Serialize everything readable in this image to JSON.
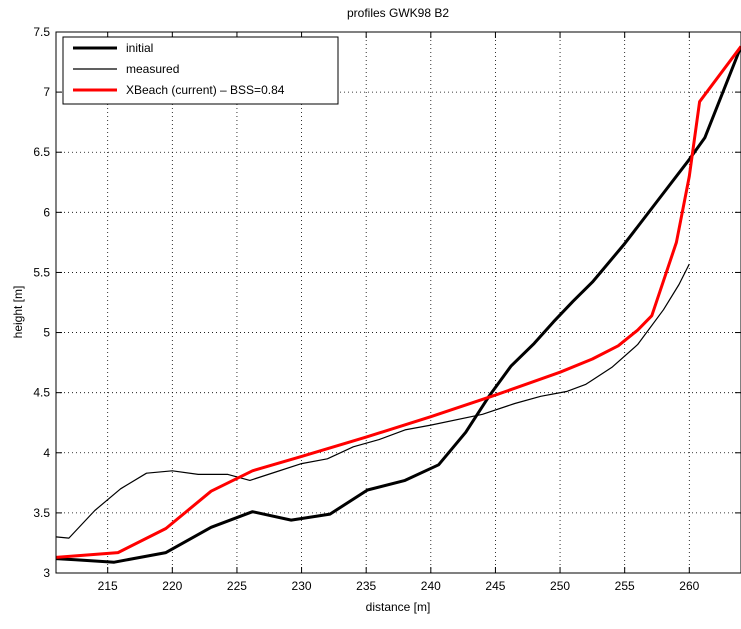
{
  "chart_data": {
    "type": "line",
    "title": "profiles GWK98 B2",
    "xlabel": "distance [m]",
    "ylabel": "height [m]",
    "xlim": [
      211,
      264
    ],
    "ylim": [
      3,
      7.5
    ],
    "x_ticks": [
      215,
      220,
      225,
      230,
      235,
      240,
      245,
      250,
      255,
      260
    ],
    "y_ticks": [
      3,
      3.5,
      4,
      4.5,
      5,
      5.5,
      6,
      6.5,
      7,
      7.5
    ],
    "x_tick_labels": [
      "215",
      "220",
      "225",
      "230",
      "235",
      "240",
      "245",
      "250",
      "255",
      "260"
    ],
    "y_tick_labels": [
      "3",
      "3.5",
      "4",
      "4.5",
      "5",
      "5.5",
      "6",
      "6.5",
      "7",
      "7.5"
    ],
    "grid": true,
    "grid_style": "dotted",
    "legend_position": "top-left",
    "series": [
      {
        "name": "initial",
        "color": "#000000",
        "line_width": "thick",
        "points": [
          [
            211,
            3.12
          ],
          [
            212.5,
            3.11
          ],
          [
            215.5,
            3.09
          ],
          [
            219.5,
            3.17
          ],
          [
            223,
            3.38
          ],
          [
            226.2,
            3.51
          ],
          [
            229.2,
            3.44
          ],
          [
            232.2,
            3.49
          ],
          [
            235.1,
            3.69
          ],
          [
            238,
            3.77
          ],
          [
            240.6,
            3.9
          ],
          [
            242.7,
            4.17
          ],
          [
            244.5,
            4.47
          ],
          [
            246.2,
            4.72
          ],
          [
            248,
            4.91
          ],
          [
            249.5,
            5.09
          ],
          [
            251,
            5.26
          ],
          [
            252.5,
            5.42
          ],
          [
            255,
            5.74
          ],
          [
            257.5,
            6.09
          ],
          [
            260,
            6.44
          ],
          [
            261.2,
            6.62
          ],
          [
            264,
            7.38
          ]
        ]
      },
      {
        "name": "measured",
        "color": "#000000",
        "line_width": "thin",
        "points": [
          [
            211,
            3.3
          ],
          [
            212,
            3.29
          ],
          [
            214,
            3.52
          ],
          [
            216,
            3.7
          ],
          [
            218,
            3.83
          ],
          [
            220,
            3.85
          ],
          [
            222,
            3.82
          ],
          [
            224.3,
            3.82
          ],
          [
            226,
            3.77
          ],
          [
            228,
            3.84
          ],
          [
            230,
            3.91
          ],
          [
            232,
            3.95
          ],
          [
            234,
            4.05
          ],
          [
            236,
            4.11
          ],
          [
            238,
            4.19
          ],
          [
            240,
            4.23
          ],
          [
            244,
            4.32
          ],
          [
            246.5,
            4.41
          ],
          [
            248.5,
            4.47
          ],
          [
            250.5,
            4.51
          ],
          [
            252,
            4.57
          ],
          [
            254,
            4.71
          ],
          [
            256,
            4.9
          ],
          [
            258,
            5.19
          ],
          [
            259.2,
            5.4
          ],
          [
            260,
            5.57
          ]
        ]
      },
      {
        "name": "XBeach (current) – BSS=0.84",
        "color": "#ff0000",
        "line_width": "thick",
        "points": [
          [
            211,
            3.13
          ],
          [
            215.8,
            3.17
          ],
          [
            219.5,
            3.37
          ],
          [
            223,
            3.68
          ],
          [
            226.2,
            3.85
          ],
          [
            230,
            3.97
          ],
          [
            235,
            4.13
          ],
          [
            240,
            4.3
          ],
          [
            245,
            4.48
          ],
          [
            250,
            4.67
          ],
          [
            252.5,
            4.78
          ],
          [
            254.5,
            4.89
          ],
          [
            256,
            5.02
          ],
          [
            257.1,
            5.14
          ],
          [
            259,
            5.75
          ],
          [
            260,
            6.3
          ],
          [
            260.8,
            6.92
          ],
          [
            264,
            7.38
          ]
        ]
      }
    ]
  }
}
